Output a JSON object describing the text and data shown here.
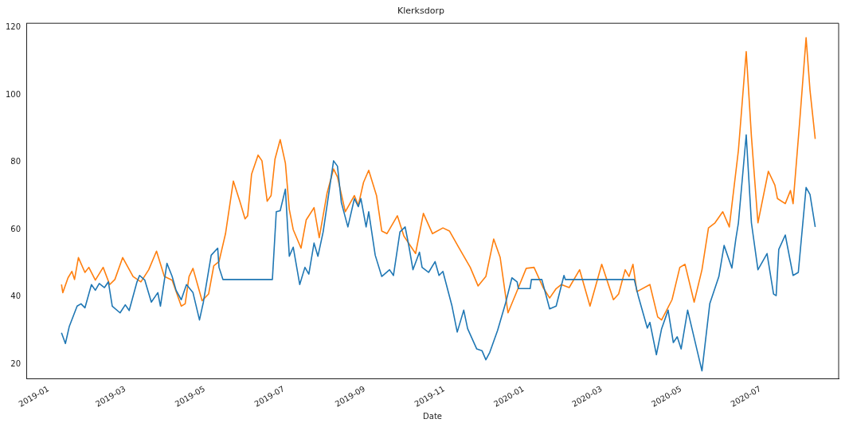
{
  "chart_data": {
    "type": "line",
    "title": "Klerksdorp",
    "xlabel": "Date",
    "xlim": [
      "2018-12-15",
      "2020-08-30"
    ],
    "xticks": [
      {
        "value": "2019-01-01",
        "label": "2019-01"
      },
      {
        "value": "2019-03-01",
        "label": "2019-03"
      },
      {
        "value": "2019-05-01",
        "label": "2019-05"
      },
      {
        "value": "2019-07-01",
        "label": "2019-07"
      },
      {
        "value": "2019-09-01",
        "label": "2019-09"
      },
      {
        "value": "2019-11-01",
        "label": "2019-11"
      },
      {
        "value": "2020-01-01",
        "label": "2020-01"
      },
      {
        "value": "2020-03-01",
        "label": "2020-03"
      },
      {
        "value": "2020-05-01",
        "label": "2020-05"
      },
      {
        "value": "2020-07-01",
        "label": "2020-07"
      }
    ],
    "ylim": [
      15.7,
      121.2
    ],
    "yticks": [
      20,
      40,
      60,
      80,
      100,
      120
    ],
    "grid": false,
    "legend": false,
    "marker": "none",
    "line_style": "solid",
    "series": [
      {
        "color": "#1f77b4",
        "x": [
          "2019-01-11",
          "2019-01-14",
          "2019-01-17",
          "2019-01-23",
          "2019-01-26",
          "2019-01-29",
          "2019-02-03",
          "2019-02-06",
          "2019-02-09",
          "2019-02-13",
          "2019-02-16",
          "2019-02-19",
          "2019-02-25",
          "2019-03-01",
          "2019-03-04",
          "2019-03-10",
          "2019-03-12",
          "2019-03-16",
          "2019-03-21",
          "2019-03-26",
          "2019-03-28",
          "2019-04-02",
          "2019-04-06",
          "2019-04-09",
          "2019-04-13",
          "2019-04-17",
          "2019-04-22",
          "2019-04-27",
          "2019-04-30",
          "2019-05-06",
          "2019-05-11",
          "2019-05-12",
          "2019-05-15",
          "2019-06-22",
          "2019-06-25",
          "2019-06-28",
          "2019-07-02",
          "2019-07-05",
          "2019-07-08",
          "2019-07-13",
          "2019-07-17",
          "2019-07-20",
          "2019-07-24",
          "2019-07-27",
          "2019-07-31",
          "2019-08-08",
          "2019-08-11",
          "2019-08-14",
          "2019-08-19",
          "2019-08-24",
          "2019-08-27",
          "2019-08-29",
          "2019-09-02",
          "2019-09-04",
          "2019-09-09",
          "2019-09-14",
          "2019-09-20",
          "2019-09-23",
          "2019-09-28",
          "2019-10-02",
          "2019-10-05",
          "2019-10-08",
          "2019-10-13",
          "2019-10-15",
          "2019-10-20",
          "2019-10-25",
          "2019-10-28",
          "2019-10-31",
          "2019-11-07",
          "2019-11-11",
          "2019-11-16",
          "2019-11-19",
          "2019-11-26",
          "2019-11-30",
          "2019-12-03",
          "2019-12-06",
          "2019-12-12",
          "2019-12-18",
          "2019-12-23",
          "2019-12-27",
          "2019-12-28",
          "2020-01-06",
          "2020-01-07",
          "2020-01-15",
          "2020-01-21",
          "2020-01-26",
          "2020-02-01",
          "2020-02-02",
          "2020-03-26",
          "2020-03-29",
          "2020-04-05",
          "2020-04-07",
          "2020-04-12",
          "2020-04-16",
          "2020-04-21",
          "2020-04-25",
          "2020-04-28",
          "2020-05-01",
          "2020-05-06",
          "2020-05-17",
          "2020-05-23",
          "2020-05-30",
          "2020-06-03",
          "2020-06-09",
          "2020-06-12",
          "2020-06-14",
          "2020-06-20",
          "2020-06-24",
          "2020-06-29",
          "2020-07-06",
          "2020-07-11",
          "2020-07-13",
          "2020-07-15",
          "2020-07-20",
          "2020-07-26",
          "2020-07-30",
          "2020-08-05",
          "2020-08-08",
          "2020-08-12"
        ],
        "values": [
          29.4,
          26.2,
          31.3,
          37.3,
          38,
          36.8,
          43.7,
          42,
          44,
          42.8,
          44.5,
          37.3,
          35.3,
          37.7,
          36,
          44.5,
          46.4,
          45,
          38.5,
          41.3,
          37.3,
          50,
          46.1,
          42,
          39.2,
          43.7,
          41.3,
          33.2,
          38.5,
          52.4,
          54.5,
          48.8,
          45.2,
          45.2,
          65.3,
          65.6,
          72,
          52.1,
          54.8,
          43.7,
          48.8,
          46.8,
          56,
          52.1,
          59.3,
          80.4,
          78.8,
          68,
          60.8,
          69.2,
          66.8,
          69.2,
          60.8,
          65.3,
          52.4,
          46.1,
          48.1,
          46.4,
          59.3,
          60.8,
          54.8,
          48.1,
          53.3,
          48.8,
          47.3,
          50.5,
          46.4,
          47.6,
          37.3,
          29.6,
          36.1,
          30.6,
          24.6,
          24.1,
          21.4,
          23.6,
          30.1,
          38,
          45.7,
          44.5,
          42.5,
          42.5,
          45.2,
          45.2,
          36.5,
          37.3,
          46.4,
          45.2,
          45.2,
          40.4,
          30.8,
          32.5,
          22.9,
          30.6,
          36.1,
          26.5,
          28.2,
          24.6,
          36.1,
          18.1,
          38,
          46.1,
          55.3,
          48.6,
          57.2,
          62,
          88.1,
          62,
          48.1,
          52.9,
          40.9,
          40.4,
          54.1,
          58.4,
          46.4,
          47.3,
          72.5,
          70.4,
          60.8
        ]
      },
      {
        "color": "#ff7f0e",
        "x": [
          "2019-01-11",
          "2019-01-12",
          "2019-01-16",
          "2019-01-19",
          "2019-01-21",
          "2019-01-24",
          "2019-01-29",
          "2019-02-01",
          "2019-02-06",
          "2019-02-12",
          "2019-02-17",
          "2019-02-21",
          "2019-02-27",
          "2019-03-07",
          "2019-03-13",
          "2019-03-19",
          "2019-03-25",
          "2019-03-31",
          "2019-04-06",
          "2019-04-13",
          "2019-04-16",
          "2019-04-19",
          "2019-04-22",
          "2019-04-29",
          "2019-05-04",
          "2019-05-08",
          "2019-05-12",
          "2019-05-17",
          "2019-05-23",
          "2019-05-28",
          "2019-06-01",
          "2019-06-03",
          "2019-06-06",
          "2019-06-11",
          "2019-06-14",
          "2019-06-18",
          "2019-06-21",
          "2019-06-24",
          "2019-06-28",
          "2019-07-02",
          "2019-07-05",
          "2019-07-08",
          "2019-07-14",
          "2019-07-18",
          "2019-07-24",
          "2019-07-28",
          "2019-08-03",
          "2019-08-08",
          "2019-08-11",
          "2019-08-17",
          "2019-08-24",
          "2019-08-27",
          "2019-08-31",
          "2019-09-04",
          "2019-09-10",
          "2019-09-14",
          "2019-09-18",
          "2019-09-26",
          "2019-10-01",
          "2019-10-10",
          "2019-10-16",
          "2019-10-23",
          "2019-10-31",
          "2019-11-05",
          "2019-11-12",
          "2019-11-21",
          "2019-11-27",
          "2019-12-03",
          "2019-12-09",
          "2019-12-14",
          "2019-12-20",
          "2019-12-26",
          "2020-01-03",
          "2020-01-09",
          "2020-01-16",
          "2020-01-21",
          "2020-01-26",
          "2020-01-30",
          "2020-02-05",
          "2020-02-13",
          "2020-02-21",
          "2020-03-01",
          "2020-03-10",
          "2020-03-14",
          "2020-03-19",
          "2020-03-22",
          "2020-03-25",
          "2020-03-28",
          "2020-04-07",
          "2020-04-13",
          "2020-04-16",
          "2020-04-24",
          "2020-04-30",
          "2020-05-04",
          "2020-05-11",
          "2020-05-17",
          "2020-05-22",
          "2020-05-27",
          "2020-06-02",
          "2020-06-07",
          "2020-06-14",
          "2020-06-20",
          "2020-06-24",
          "2020-06-29",
          "2020-07-07",
          "2020-07-12",
          "2020-07-14",
          "2020-07-20",
          "2020-07-24",
          "2020-07-26",
          "2020-07-31",
          "2020-08-05",
          "2020-08-08",
          "2020-08-12"
        ],
        "values": [
          43.7,
          41.3,
          45.7,
          47.6,
          45.2,
          51.7,
          47.3,
          48.8,
          45,
          48.8,
          43.7,
          45.2,
          51.7,
          46.1,
          44.5,
          48.1,
          53.6,
          46.1,
          45,
          37.3,
          38,
          46.1,
          48.5,
          38.9,
          40.9,
          49.3,
          50.5,
          58.8,
          74.4,
          68.4,
          63.2,
          64.1,
          76.4,
          82.1,
          80.4,
          68.4,
          70.1,
          80.9,
          86.7,
          79.7,
          66,
          60,
          54.5,
          62.9,
          66.5,
          57.6,
          70.8,
          78,
          75.6,
          65.3,
          70.1,
          67.2,
          74,
          77.6,
          70.1,
          59.6,
          58.8,
          64.1,
          58.1,
          52.9,
          64.8,
          58.8,
          60.5,
          59.6,
          54.8,
          48.8,
          43.3,
          46.1,
          57.2,
          51.7,
          35.3,
          40.9,
          48.5,
          48.8,
          42.8,
          39.7,
          42.5,
          43.7,
          42.8,
          48.1,
          37.3,
          49.7,
          39.2,
          40.9,
          48.1,
          46.1,
          49.7,
          41.6,
          43.7,
          34.1,
          33.2,
          39.2,
          48.8,
          49.7,
          38.5,
          48.1,
          60.5,
          62,
          65.3,
          60.8,
          83.5,
          112.8,
          87.6,
          62,
          77.3,
          73.2,
          69.2,
          67.7,
          71.6,
          67.7,
          91.7,
          116.9,
          101.3,
          86.9
        ]
      }
    ]
  }
}
